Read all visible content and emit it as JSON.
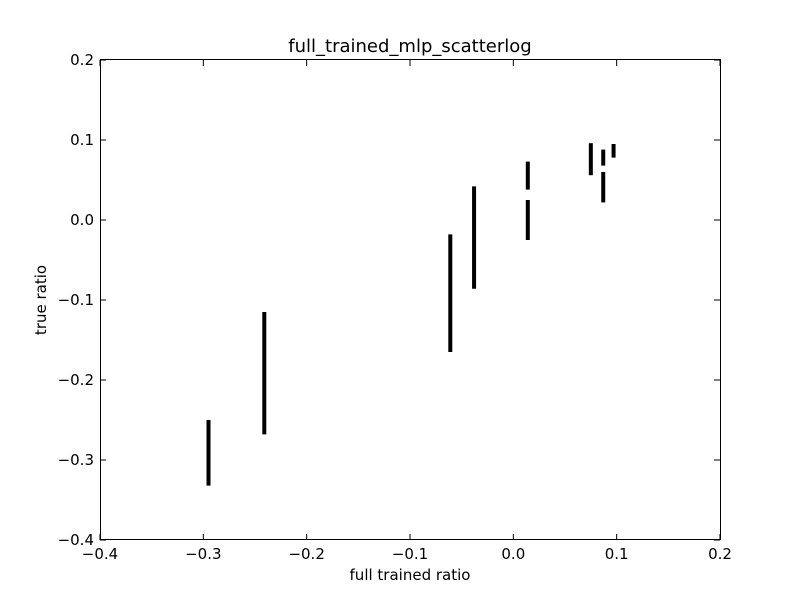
{
  "chart_data": {
    "type": "scatter",
    "title": "full_trained_mlp_scatterlog",
    "xlabel": "full trained ratio",
    "ylabel": "true ratio",
    "xlim": [
      -0.4,
      0.2
    ],
    "ylim": [
      -0.4,
      0.2
    ],
    "xticks": [
      -0.4,
      -0.3,
      -0.2,
      -0.1,
      0.0,
      0.1,
      0.2
    ],
    "yticks": [
      -0.4,
      -0.3,
      -0.2,
      -0.1,
      0.0,
      0.1,
      0.2
    ],
    "xtick_labels": [
      "−0.4",
      "−0.3",
      "−0.2",
      "−0.1",
      "0.0",
      "0.1",
      "0.2"
    ],
    "ytick_labels": [
      "−0.4",
      "−0.3",
      "−0.2",
      "−0.1",
      "0.0",
      "0.1",
      "0.2"
    ],
    "grid": false,
    "marker": "vertical-line",
    "mark_color": "#000000",
    "segments": [
      {
        "x": -0.295,
        "y_low": -0.332,
        "y_high": -0.25
      },
      {
        "x": -0.241,
        "y_low": -0.268,
        "y_high": -0.115
      },
      {
        "x": -0.061,
        "y_low": -0.165,
        "y_high": -0.018
      },
      {
        "x": -0.038,
        "y_low": -0.086,
        "y_high": 0.042
      },
      {
        "x": 0.014,
        "y_low": -0.025,
        "y_high": 0.025
      },
      {
        "x": 0.014,
        "y_low": 0.038,
        "y_high": 0.073
      },
      {
        "x": 0.075,
        "y_low": 0.056,
        "y_high": 0.096
      },
      {
        "x": 0.087,
        "y_low": 0.022,
        "y_high": 0.06
      },
      {
        "x": 0.087,
        "y_low": 0.068,
        "y_high": 0.088
      },
      {
        "x": 0.097,
        "y_low": 0.078,
        "y_high": 0.095
      }
    ]
  }
}
